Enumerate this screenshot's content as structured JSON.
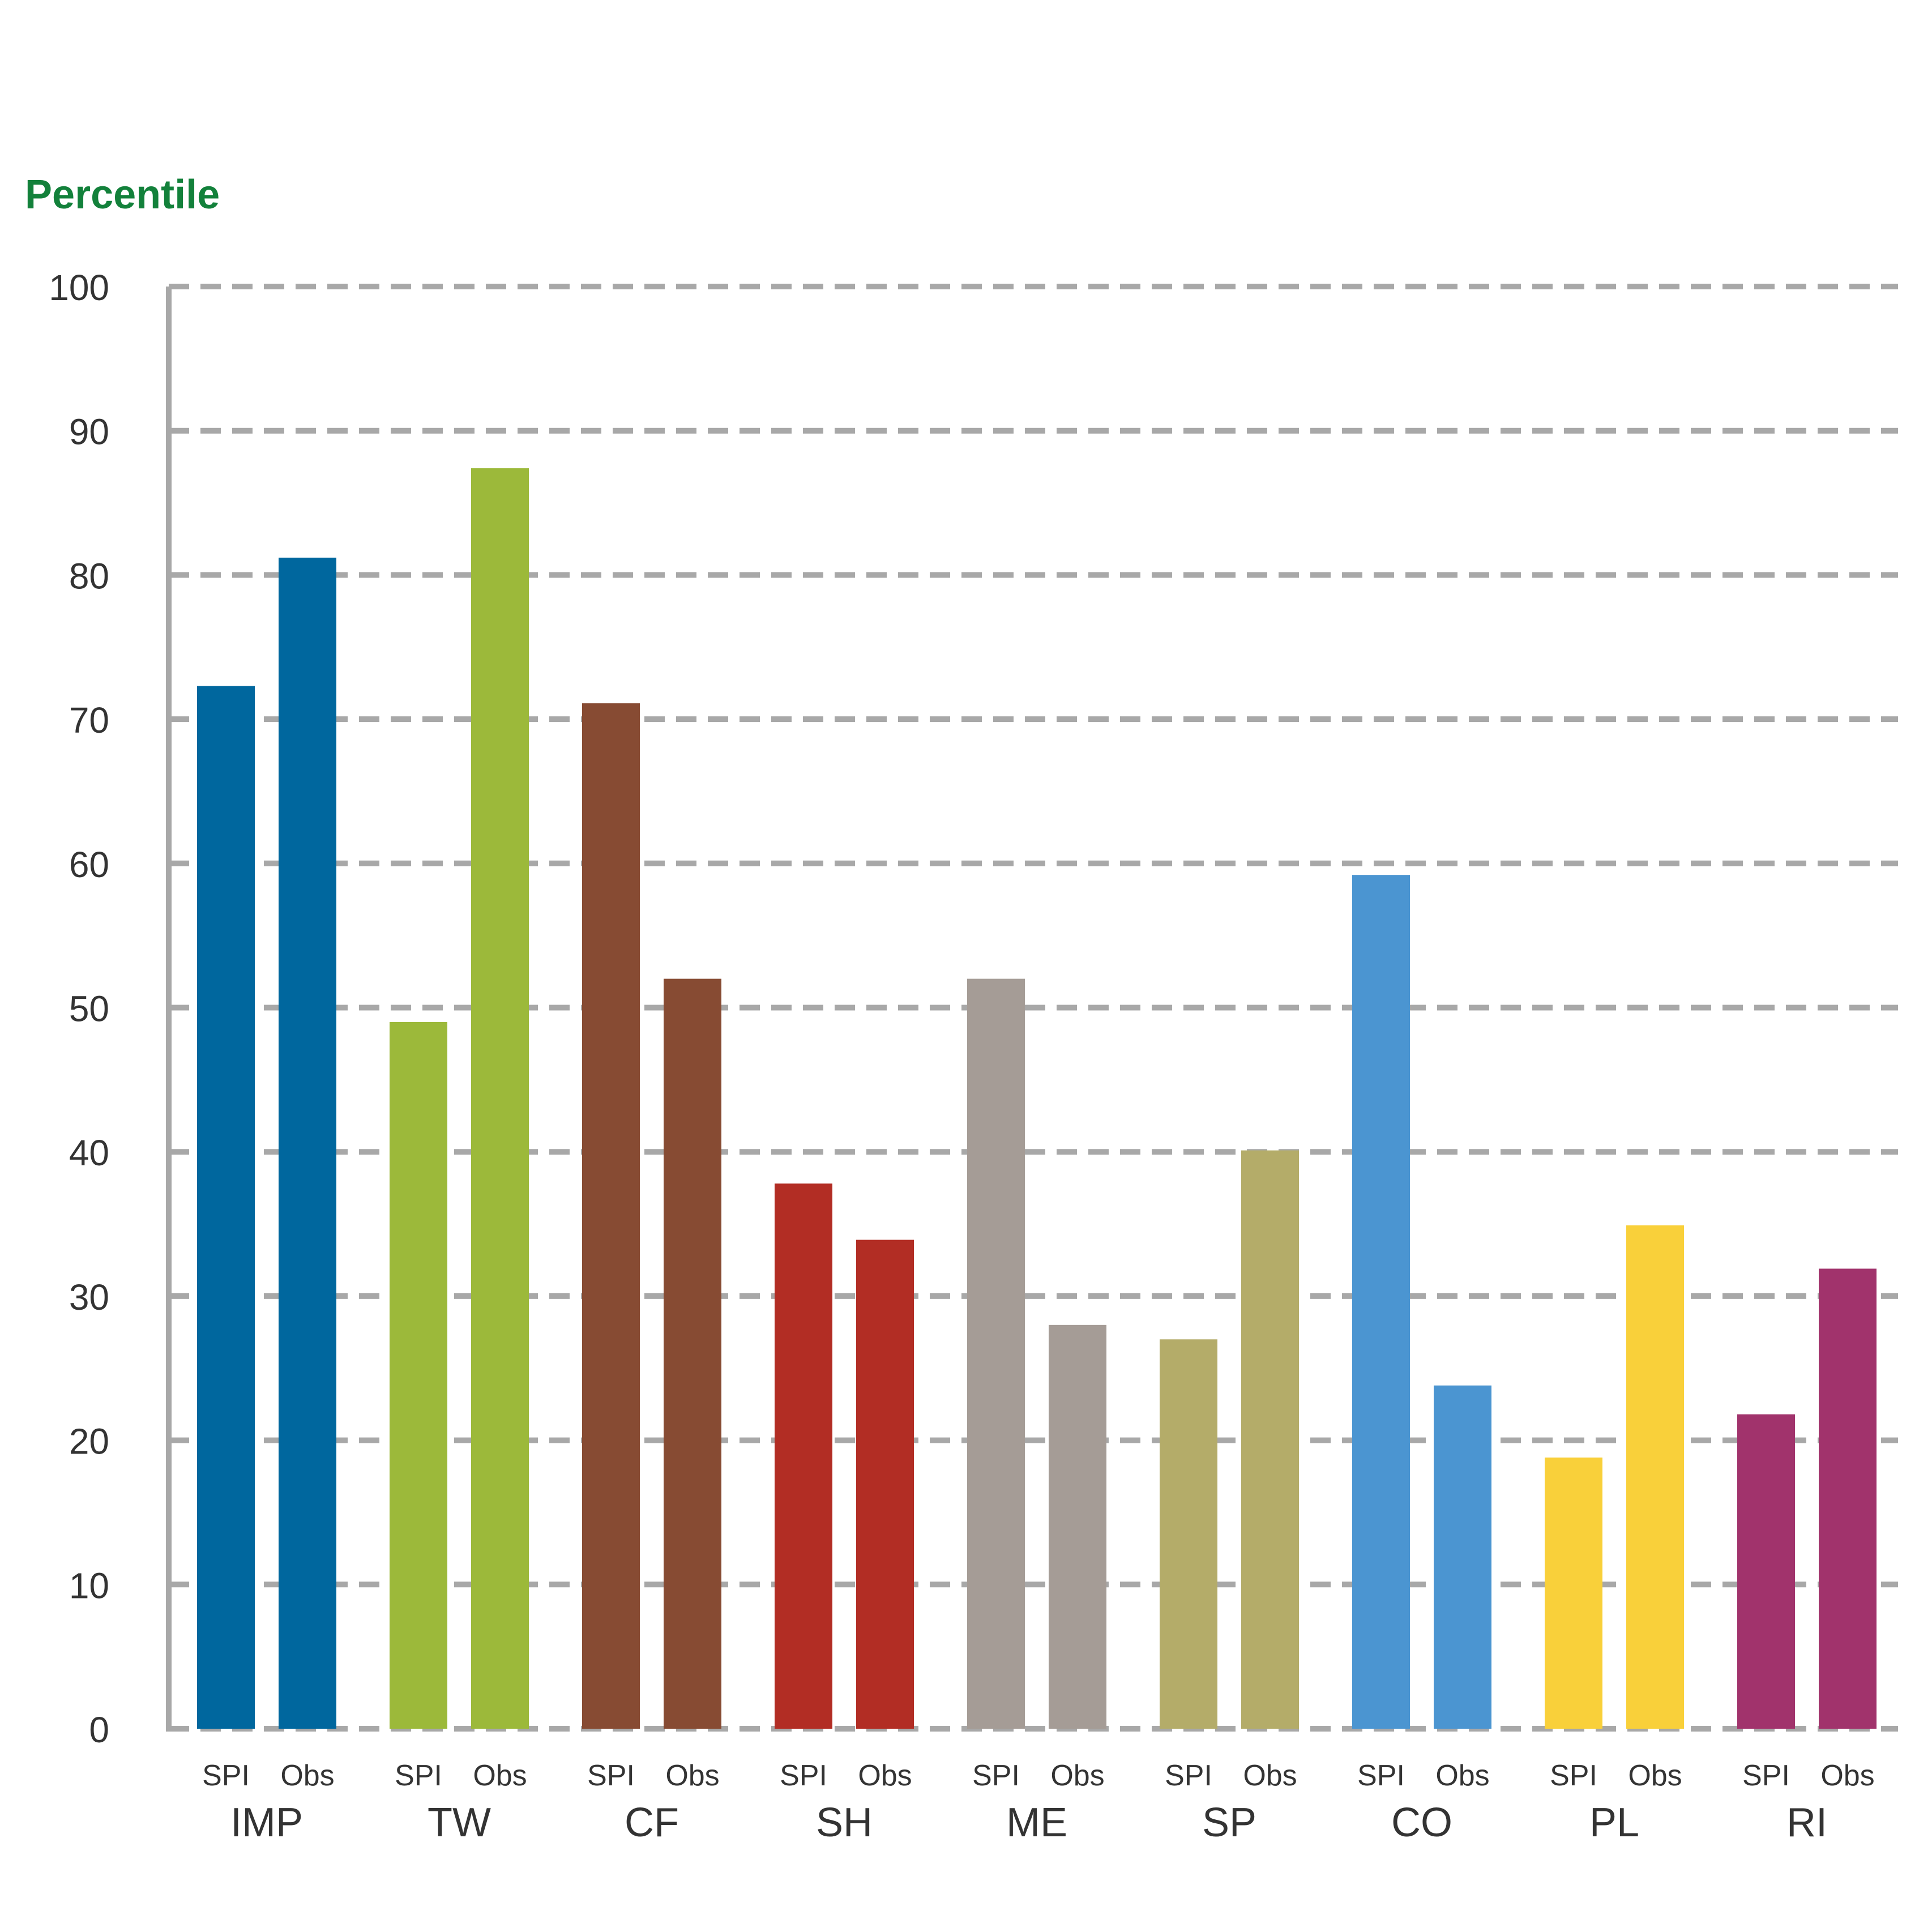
{
  "chart_data": {
    "type": "bar",
    "ylabel": "Percentile",
    "ylim": [
      0,
      100
    ],
    "yticks": [
      0,
      10,
      20,
      30,
      40,
      50,
      60,
      70,
      80,
      90,
      100
    ],
    "grid": true,
    "grid_style": "dashed",
    "sub_categories": [
      "SPI",
      "Obs"
    ],
    "categories": [
      {
        "label": "IMP",
        "color": "#00679E",
        "values": [
          72.3,
          81.2
        ]
      },
      {
        "label": "TW",
        "color": "#9CB93A",
        "values": [
          49,
          87.4
        ]
      },
      {
        "label": "CF",
        "color": "#874B33",
        "values": [
          71.1,
          52
        ]
      },
      {
        "label": "SH",
        "color": "#B22D24",
        "values": [
          37.8,
          33.9
        ]
      },
      {
        "label": "ME",
        "color": "#A59C96",
        "values": [
          52,
          28
        ]
      },
      {
        "label": "SP",
        "color": "#B4AC69",
        "values": [
          27,
          40.1
        ]
      },
      {
        "label": "CO",
        "color": "#4B95D1",
        "values": [
          59.2,
          23.8
        ]
      },
      {
        "label": "PL",
        "color": "#F9D03A",
        "values": [
          18.8,
          34.9
        ]
      },
      {
        "label": "RI",
        "color": "#A1336C",
        "values": [
          21.8,
          31.9
        ]
      }
    ],
    "colors": {
      "axis": "#A8A8A8",
      "grid": "#A8A8A8",
      "ylabel": "#13813B",
      "text": "#333333"
    }
  }
}
